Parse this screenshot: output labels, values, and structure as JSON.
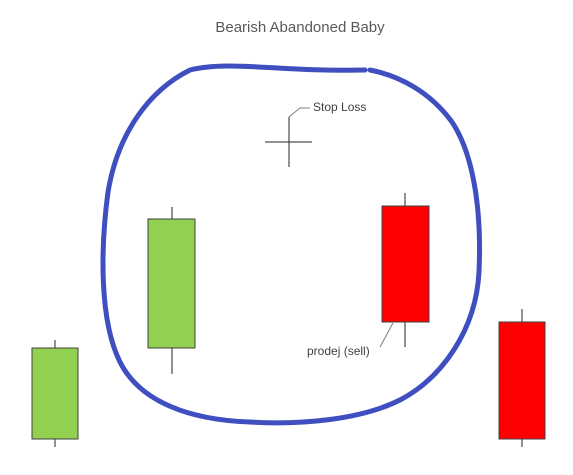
{
  "title": "Bearish Abandoned Baby",
  "annotations": {
    "stop_loss": "Stop Loss",
    "sell": "prodej (sell)"
  }
}
